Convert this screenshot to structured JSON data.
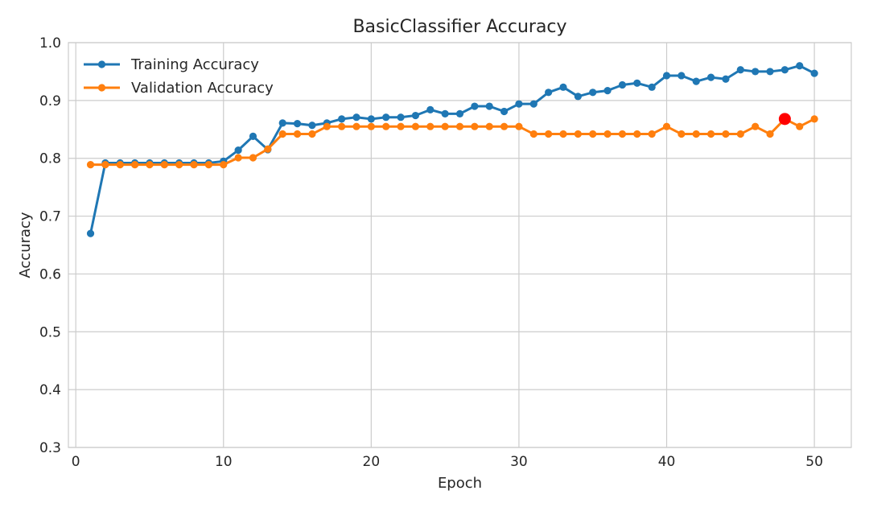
{
  "chart_data": {
    "type": "line",
    "title": "BasicClassifier Accuracy",
    "xlabel": "Epoch",
    "ylabel": "Accuracy",
    "xlim": [
      -0.5,
      52.5
    ],
    "ylim": [
      0.3,
      1.0
    ],
    "x_ticks": [
      0,
      10,
      20,
      30,
      40,
      50
    ],
    "x_tick_labels": [
      "0",
      "10",
      "20",
      "30",
      "40",
      "50"
    ],
    "y_ticks": [
      0.3,
      0.4,
      0.5,
      0.6,
      0.7,
      0.8,
      0.9,
      1.0
    ],
    "y_tick_labels": [
      "0.3",
      "0.4",
      "0.5",
      "0.6",
      "0.7",
      "0.8",
      "0.9",
      "1.0"
    ],
    "grid": true,
    "legend_position": "top-left",
    "x": [
      1,
      2,
      3,
      4,
      5,
      6,
      7,
      8,
      9,
      10,
      11,
      12,
      13,
      14,
      15,
      16,
      17,
      18,
      19,
      20,
      21,
      22,
      23,
      24,
      25,
      26,
      27,
      28,
      29,
      30,
      31,
      32,
      33,
      34,
      35,
      36,
      37,
      38,
      39,
      40,
      41,
      42,
      43,
      44,
      45,
      46,
      47,
      48,
      49,
      50
    ],
    "series": [
      {
        "name": "Training Accuracy",
        "color": "#1f77b4",
        "values": [
          0.67,
          0.792,
          0.792,
          0.792,
          0.792,
          0.792,
          0.792,
          0.792,
          0.792,
          0.795,
          0.814,
          0.838,
          0.815,
          0.861,
          0.86,
          0.857,
          0.861,
          0.868,
          0.871,
          0.868,
          0.871,
          0.871,
          0.874,
          0.884,
          0.877,
          0.877,
          0.89,
          0.89,
          0.881,
          0.894,
          0.894,
          0.914,
          0.923,
          0.907,
          0.914,
          0.917,
          0.927,
          0.93,
          0.923,
          0.943,
          0.943,
          0.933,
          0.94,
          0.937,
          0.953,
          0.95,
          0.95,
          0.953,
          0.96,
          0.947
        ]
      },
      {
        "name": "Validation Accuracy",
        "color": "#ff7f0e",
        "values": [
          0.789,
          0.789,
          0.789,
          0.789,
          0.789,
          0.789,
          0.789,
          0.789,
          0.789,
          0.789,
          0.801,
          0.801,
          0.816,
          0.842,
          0.842,
          0.842,
          0.855,
          0.855,
          0.855,
          0.855,
          0.855,
          0.855,
          0.855,
          0.855,
          0.855,
          0.855,
          0.855,
          0.855,
          0.855,
          0.855,
          0.842,
          0.842,
          0.842,
          0.842,
          0.842,
          0.842,
          0.842,
          0.842,
          0.842,
          0.855,
          0.842,
          0.842,
          0.842,
          0.842,
          0.842,
          0.855,
          0.842,
          0.868,
          0.855,
          0.868
        ]
      }
    ],
    "highlight": {
      "x": 48,
      "y": 0.868,
      "color": "#ff0000"
    }
  }
}
